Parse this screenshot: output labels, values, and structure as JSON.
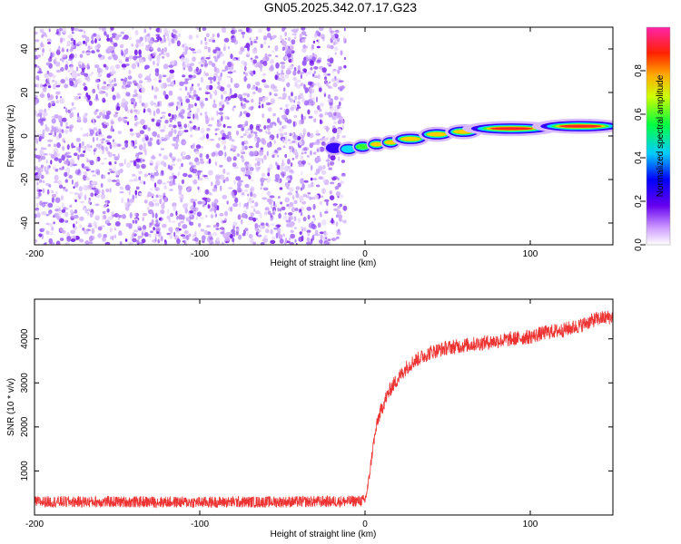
{
  "title": "GN05.2025.342.07.17.G23",
  "chart_data": [
    {
      "type": "heatmap",
      "name": "spectrogram",
      "xlabel": "Height of straight line (km)",
      "ylabel": "Frequency (Hz)",
      "xlim": [
        -200,
        150
      ],
      "ylim": [
        -50,
        50
      ],
      "xticks": [
        -200,
        -100,
        0,
        100
      ],
      "xtick_labels": [
        "-200",
        "-100",
        "0",
        "100"
      ],
      "yticks": [
        -40,
        -20,
        0,
        20,
        40
      ],
      "ytick_labels": [
        "-40",
        "-20",
        "0",
        "20",
        "40"
      ],
      "colorbar": {
        "label": "Normalized spectral amplitude",
        "range": [
          0,
          1
        ],
        "ticks": [
          0,
          0.2,
          0.4,
          0.6,
          0.8
        ],
        "tick_labels": [
          "0.0",
          "0.2",
          "0.4",
          "0.6",
          "0.8"
        ],
        "colormap": "rainbow (white-purple-blue-cyan-green-yellow-red-magenta)"
      },
      "noise_region": {
        "x_range": [
          -200,
          -12
        ],
        "y_range": [
          -50,
          50
        ],
        "level": "low (0.05-0.2)"
      },
      "signal_ridge": {
        "x": [
          -22,
          -15,
          -8,
          -2,
          5,
          15,
          30,
          45,
          60,
          80,
          100,
          120,
          140,
          150
        ],
        "y": [
          -5,
          -6,
          -6,
          -5,
          -4,
          -3,
          -1,
          1,
          2,
          3,
          4,
          4.5,
          4.5,
          4.5
        ],
        "amplitude": [
          0.3,
          0.5,
          0.6,
          0.7,
          0.8,
          0.85,
          0.85,
          0.9,
          0.9,
          0.9,
          0.95,
          0.95,
          0.95,
          0.9
        ]
      }
    },
    {
      "type": "line",
      "name": "snr",
      "xlabel": "Height of straight line (km)",
      "ylabel": "SNR (10 * v/v)",
      "xlim": [
        -200,
        150
      ],
      "ylim": [
        0,
        4900
      ],
      "xticks": [
        -200,
        -100,
        0,
        100
      ],
      "xtick_labels": [
        "-200",
        "-100",
        "0",
        "100"
      ],
      "yticks": [
        1000,
        2000,
        3000,
        4000
      ],
      "ytick_labels": [
        "1000",
        "2000",
        "3000",
        "4000"
      ],
      "color": "#ee3333",
      "series": [
        {
          "name": "SNR",
          "x": [
            -200,
            -150,
            -100,
            -50,
            -10,
            0,
            2,
            5,
            8,
            12,
            16,
            20,
            25,
            30,
            40,
            50,
            60,
            70,
            80,
            90,
            100,
            110,
            120,
            130,
            140,
            150
          ],
          "y": [
            300,
            300,
            290,
            300,
            310,
            330,
            700,
            1600,
            2200,
            2600,
            2900,
            3100,
            3350,
            3500,
            3700,
            3800,
            3850,
            3900,
            3950,
            4000,
            4050,
            4150,
            4200,
            4300,
            4450,
            4500
          ],
          "noise_amplitude": 130
        }
      ]
    }
  ]
}
